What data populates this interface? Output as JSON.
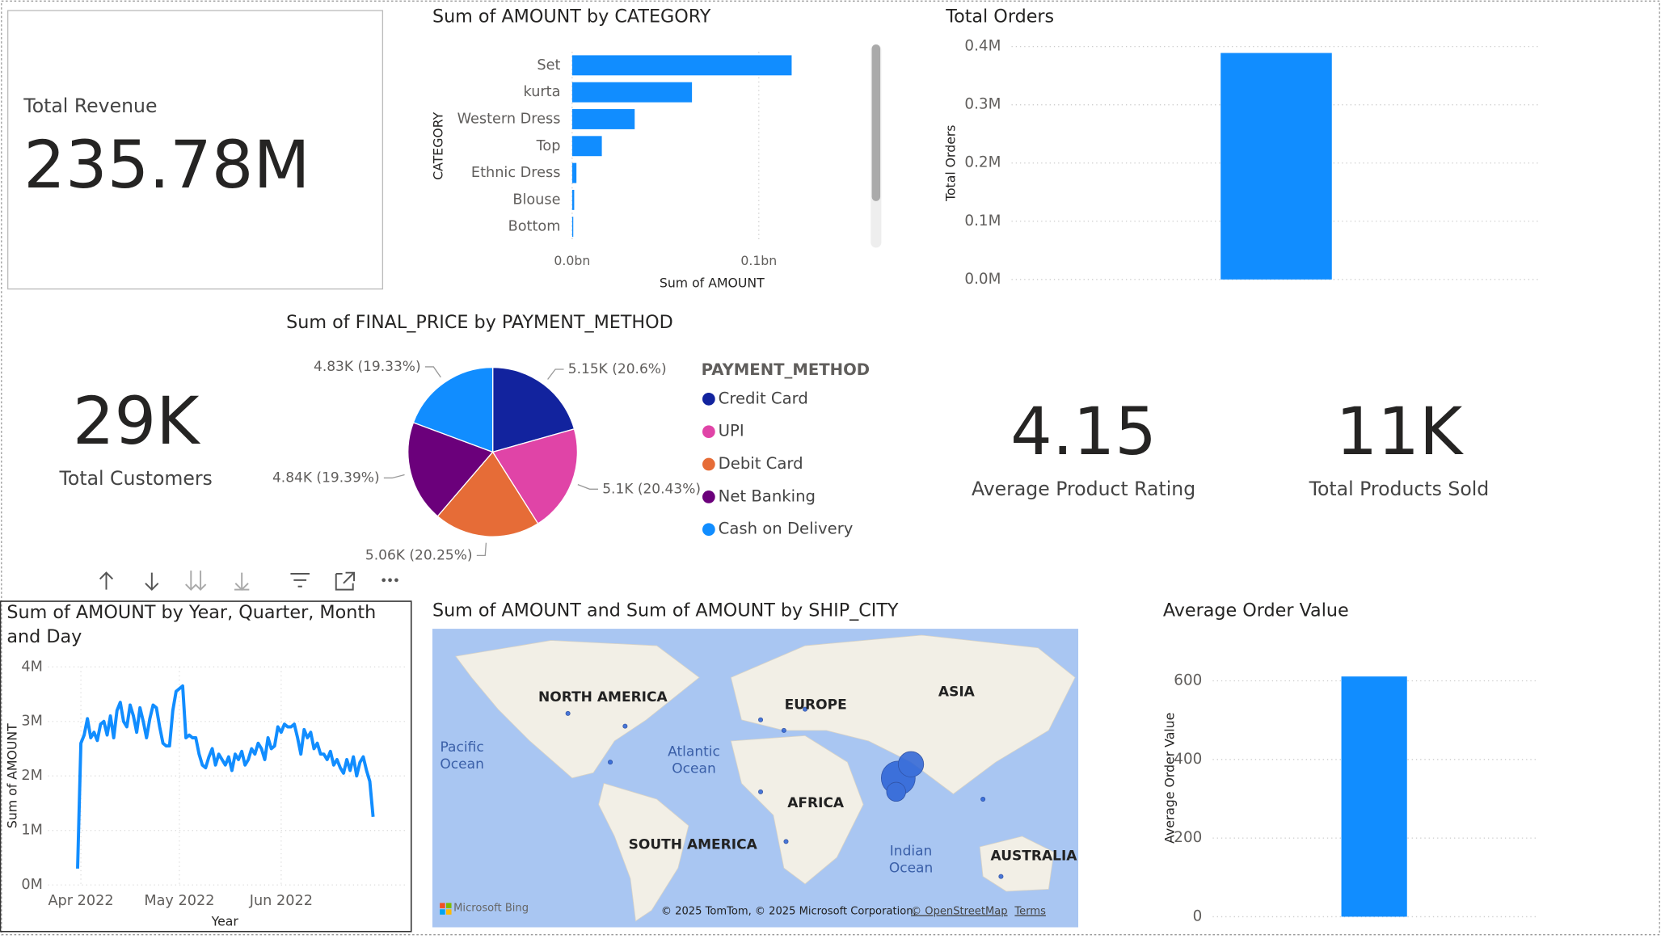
{
  "cards": [
    {
      "label": "Total Revenue",
      "value": "235.78M"
    },
    {
      "label": "Total Customers",
      "value": "29K"
    },
    {
      "label": "Average Product Rating",
      "value": "4.15"
    },
    {
      "label": "Total Products Sold",
      "value": "11K"
    }
  ],
  "chart_data": [
    {
      "type": "hbar",
      "title": "Sum of AMOUNT by CATEGORY",
      "x_label": "Sum of AMOUNT",
      "y_label": "CATEGORY",
      "categories": [
        "Set",
        "kurta",
        "Western Dress",
        "Top",
        "Ethnic Dress",
        "Blouse",
        "Bottom"
      ],
      "values": [
        0.1176,
        0.0642,
        0.0335,
        0.0159,
        0.0023,
        0.0011,
        0.0006
      ],
      "color": "#118dff",
      "xlim": [
        0,
        0.156
      ],
      "xticks": [
        {
          "value": 0,
          "label": "0.0bn"
        },
        {
          "value": 0.1,
          "label": "0.1bn"
        }
      ],
      "grid": true
    },
    {
      "type": "bar",
      "title": "Total Orders",
      "y_label": "Total Orders",
      "categories": [
        null
      ],
      "values": [
        0.389
      ],
      "color": "#118dff",
      "ylim": [
        0,
        0.4
      ],
      "yticks": [
        {
          "value": 0,
          "label": "0.0M"
        },
        {
          "value": 0.1,
          "label": "0.1M"
        },
        {
          "value": 0.2,
          "label": "0.2M"
        },
        {
          "value": 0.3,
          "label": "0.3M"
        },
        {
          "value": 0.4,
          "label": "0.4M"
        }
      ],
      "grid": true
    },
    {
      "type": "pie",
      "title": "Sum of FINAL_PRICE by PAYMENT_METHOD",
      "legend_title": "PAYMENT_METHOD",
      "categories": [
        "Credit Card",
        "UPI",
        "Debit Card",
        "Net Banking",
        "Cash on Delivery"
      ],
      "values": [
        5.15,
        5.1,
        5.06,
        4.84,
        4.83
      ],
      "value_labels": [
        "5.15K (20.6%)",
        "5.1K (20.43%)",
        "5.06K (20.25%)",
        "4.84K (19.39%)",
        "4.83K (19.33%)"
      ],
      "colors": [
        "#12239e",
        "#e044a7",
        "#e66c37",
        "#6b007b",
        "#118dff"
      ]
    },
    {
      "type": "line",
      "title": "Sum of AMOUNT by Year, Quarter, Month and Day",
      "x_label": "Year",
      "y_label": "Sum of AMOUNT",
      "values": [
        0.3,
        2.6,
        2.75,
        3.05,
        2.7,
        2.8,
        2.65,
        2.95,
        3.0,
        2.75,
        3.1,
        2.7,
        3.2,
        3.35,
        3.0,
        2.9,
        3.3,
        3.1,
        2.8,
        3.25,
        3.0,
        2.7,
        3.05,
        3.3,
        3.25,
        2.9,
        2.6,
        2.55,
        2.55,
        3.2,
        3.55,
        3.6,
        3.65,
        2.7,
        2.75,
        2.7,
        2.7,
        2.4,
        2.2,
        2.15,
        2.35,
        2.5,
        2.2,
        2.4,
        2.3,
        2.2,
        2.35,
        2.1,
        2.4,
        2.3,
        2.45,
        2.2,
        2.3,
        2.5,
        2.4,
        2.6,
        2.5,
        2.3,
        2.7,
        2.5,
        2.55,
        2.9,
        2.8,
        2.95,
        2.9,
        2.9,
        2.95,
        2.7,
        2.4,
        2.85,
        2.7,
        2.8,
        2.5,
        2.6,
        2.4,
        2.4,
        2.3,
        2.45,
        2.2,
        2.3,
        2.15,
        2.05,
        2.3,
        2.1,
        2.35,
        2.0,
        2.25,
        2.35,
        2.1,
        1.9,
        1.25
      ],
      "color": "#118dff",
      "xlim": [
        -9,
        100
      ],
      "xticks": [
        {
          "value": 1,
          "label": "Apr 2022"
        },
        {
          "value": 31,
          "label": "May 2022"
        },
        {
          "value": 62,
          "label": "Jun 2022"
        }
      ],
      "ylim": [
        0,
        4
      ],
      "yticks": [
        {
          "value": 0,
          "label": "0M"
        },
        {
          "value": 1,
          "label": "1M"
        },
        {
          "value": 2,
          "label": "2M"
        },
        {
          "value": 3,
          "label": "3M"
        },
        {
          "value": 4,
          "label": "4M"
        }
      ],
      "grid": true
    },
    {
      "type": "bar",
      "title": "Average Order Value",
      "y_label": "Average Order Value",
      "categories": [
        null
      ],
      "values": [
        611
      ],
      "color": "#118dff",
      "ylim": [
        0,
        630
      ],
      "yticks": [
        0,
        200,
        400,
        600
      ],
      "grid": true
    }
  ],
  "map": {
    "title": "Sum of AMOUNT and Sum of AMOUNT by SHIP_CITY",
    "labels": [
      "NORTH AMERICA",
      "EUROPE",
      "ASIA",
      "AFRICA",
      "SOUTH AMERICA",
      "AUSTRALIA"
    ],
    "oceans": [
      "Pacific Ocean",
      "Atlantic Ocean",
      "Indian Ocean"
    ],
    "brand": "Microsoft Bing",
    "attribution": "© 2025 TomTom, © 2025 Microsoft Corporation,",
    "osm": "© OpenStreetMap",
    "terms": "Terms"
  }
}
